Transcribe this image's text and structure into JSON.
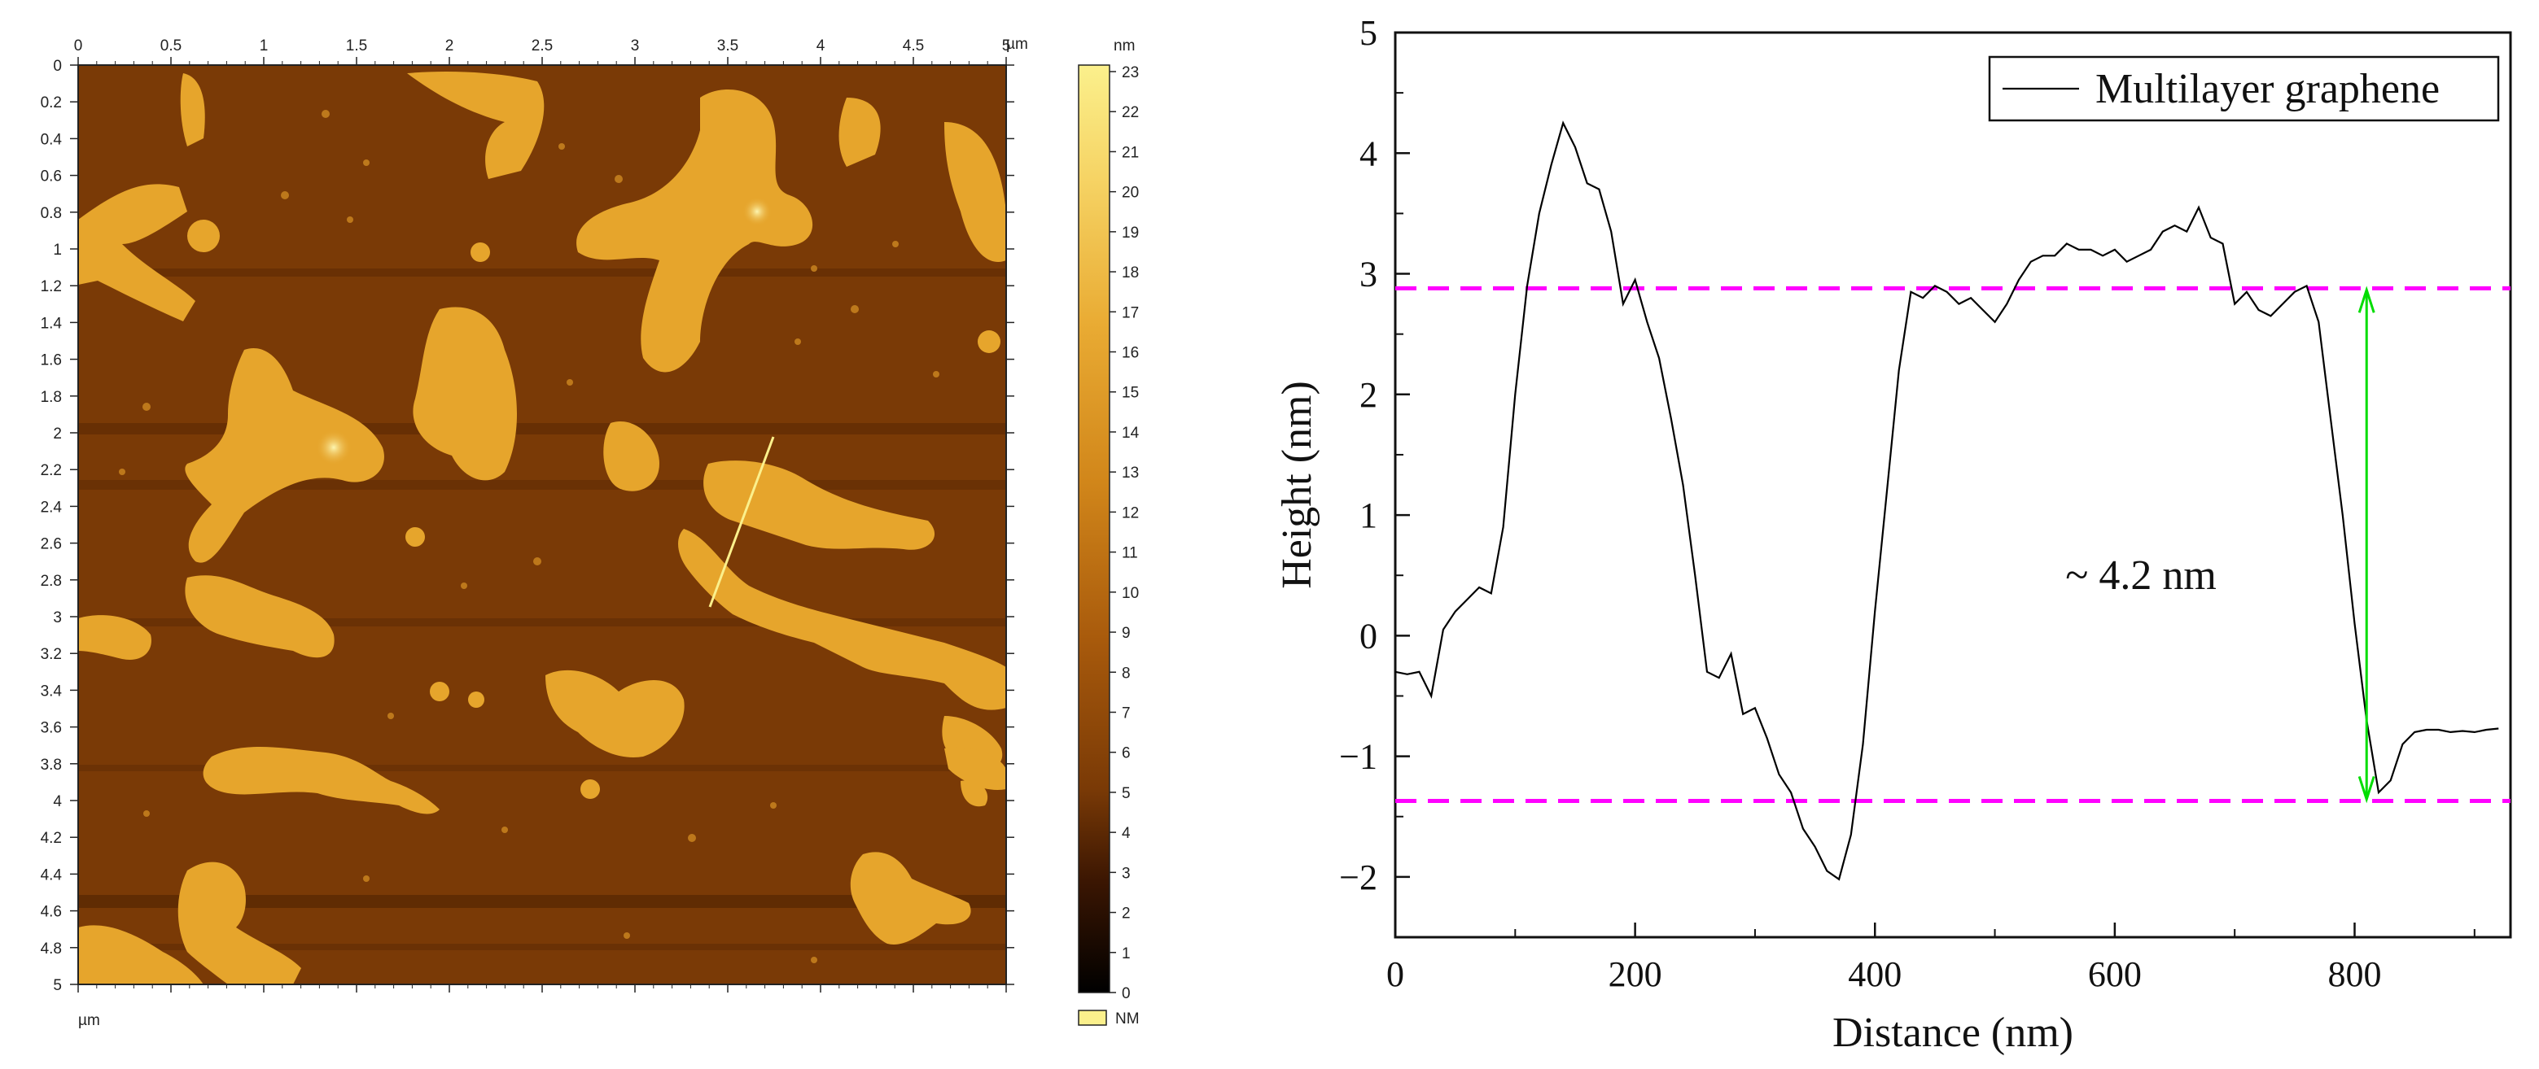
{
  "afm_image": {
    "x_unit": "µm",
    "y_unit": "µm",
    "x_ticks": [
      "0",
      "0.5",
      "1",
      "1.5",
      "2",
      "2.5",
      "3",
      "3.5",
      "4",
      "4.5",
      "5"
    ],
    "y_ticks": [
      "0",
      "0.2",
      "0.4",
      "0.6",
      "0.8",
      "1",
      "1.2",
      "1.4",
      "1.6",
      "1.8",
      "2",
      "2.2",
      "2.4",
      "2.6",
      "2.8",
      "3",
      "3.2",
      "3.4",
      "3.6",
      "3.8",
      "4",
      "4.2",
      "4.4",
      "4.6",
      "4.8",
      "5"
    ],
    "colorbar_unit": "nm",
    "colorbar_ticks": [
      "0",
      "1",
      "2",
      "3",
      "4",
      "5",
      "6",
      "7",
      "8",
      "9",
      "10",
      "11",
      "12",
      "13",
      "14",
      "15",
      "16",
      "17",
      "18",
      "19",
      "20",
      "21",
      "22",
      "23"
    ],
    "colorbar_legend": "NM",
    "colors": {
      "substrate": "#7a3a06",
      "flake": "#e6a52c",
      "high": "#fbf08c",
      "low": "#000000"
    }
  },
  "chart_data": {
    "type": "line",
    "legend": "Multilayer graphene",
    "xlabel": "Distance (nm)",
    "ylabel": "Height (nm)",
    "xlim": [
      0,
      930
    ],
    "ylim": [
      -2.5,
      5
    ],
    "x_ticks": [
      "0",
      "200",
      "400",
      "600",
      "800"
    ],
    "y_ticks": [
      "−2",
      "−1",
      "0",
      "1",
      "2",
      "3",
      "4",
      "5"
    ],
    "annotation": "~ 4.2 nm",
    "reference_lines": [
      2.88,
      -1.37
    ],
    "arrow": {
      "x": 810,
      "y_top": 2.88,
      "y_bottom": -1.37
    },
    "series": [
      {
        "name": "Multilayer graphene",
        "x": [
          0,
          10,
          20,
          30,
          40,
          50,
          60,
          70,
          80,
          90,
          100,
          110,
          120,
          130,
          140,
          150,
          160,
          170,
          180,
          190,
          200,
          210,
          220,
          230,
          240,
          250,
          260,
          270,
          280,
          290,
          300,
          310,
          320,
          330,
          340,
          350,
          360,
          370,
          380,
          390,
          400,
          410,
          420,
          430,
          440,
          450,
          460,
          470,
          480,
          490,
          500,
          510,
          520,
          530,
          540,
          550,
          560,
          570,
          580,
          590,
          600,
          610,
          620,
          630,
          640,
          650,
          660,
          670,
          680,
          690,
          700,
          710,
          720,
          730,
          740,
          750,
          760,
          770,
          780,
          790,
          800,
          810,
          820,
          830,
          840,
          850,
          860,
          870,
          880,
          890,
          900,
          910,
          920
        ],
        "y": [
          -0.3,
          -0.32,
          -0.3,
          -0.5,
          0.05,
          0.2,
          0.3,
          0.4,
          0.35,
          0.9,
          2.0,
          2.9,
          3.5,
          3.9,
          4.25,
          4.05,
          3.75,
          3.7,
          3.35,
          2.75,
          2.95,
          2.6,
          2.3,
          1.8,
          1.25,
          0.5,
          -0.3,
          -0.35,
          -0.15,
          -0.65,
          -0.6,
          -0.85,
          -1.15,
          -1.3,
          -1.6,
          -1.75,
          -1.95,
          -2.02,
          -1.65,
          -0.9,
          0.2,
          1.2,
          2.2,
          2.85,
          2.8,
          2.9,
          2.85,
          2.75,
          2.8,
          2.7,
          2.6,
          2.75,
          2.95,
          3.1,
          3.15,
          3.15,
          3.25,
          3.2,
          3.2,
          3.15,
          3.2,
          3.1,
          3.15,
          3.2,
          3.35,
          3.4,
          3.35,
          3.55,
          3.3,
          3.25,
          2.75,
          2.85,
          2.7,
          2.65,
          2.75,
          2.85,
          2.9,
          2.6,
          1.8,
          1.0,
          0.1,
          -0.7,
          -1.3,
          -1.2,
          -0.9,
          -0.8,
          -0.78,
          -0.78,
          -0.8,
          -0.79,
          -0.8,
          -0.78,
          -0.77
        ],
        "color": "#000000"
      }
    ],
    "colors": {
      "reference": "#ff00ff",
      "arrow": "#00dd00"
    }
  }
}
